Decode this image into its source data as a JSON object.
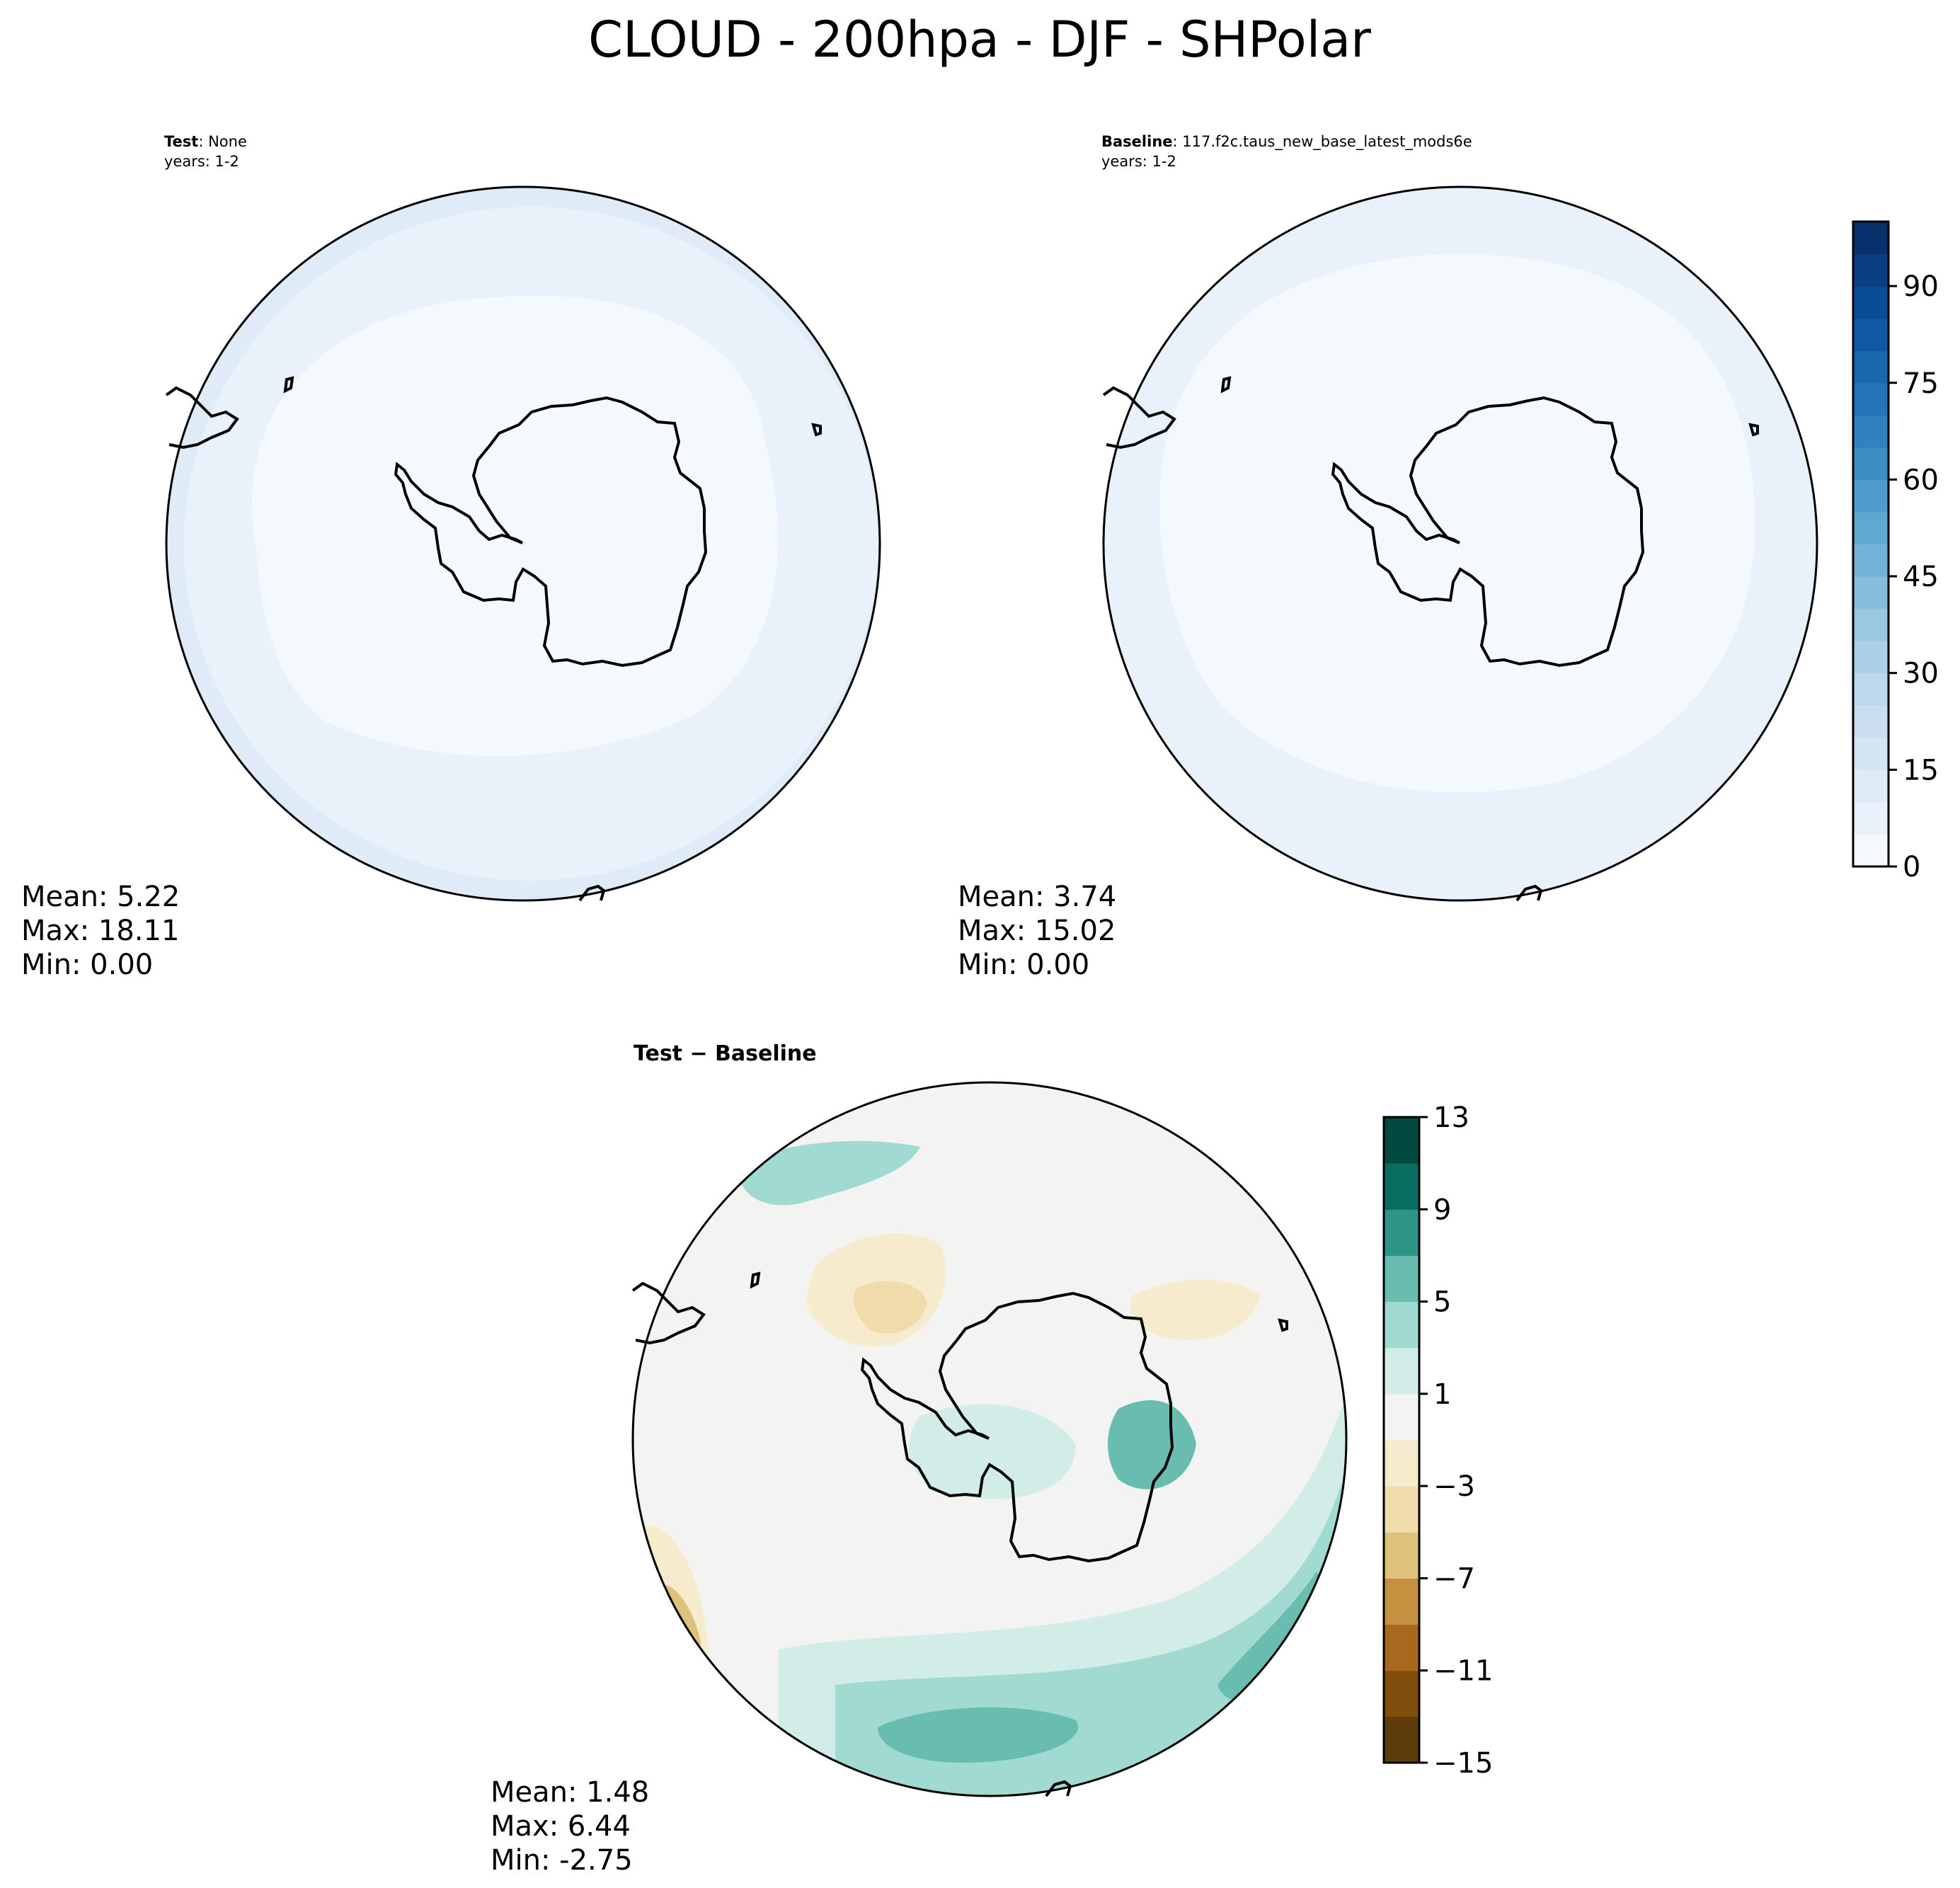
{
  "figure": {
    "title": "CLOUD - 200hpa - DJF - SHPolar"
  },
  "chart_data": [
    {
      "type": "heatmap",
      "projection": "south-polar-stereographic",
      "panel": "test",
      "header_label": "Test",
      "header_value": ": None",
      "years": "years: 1-2",
      "stats": {
        "mean": "5.22",
        "max": "18.11",
        "min": "0.00"
      },
      "stat_lines": [
        "Mean:  5.22",
        "Max: 18.11",
        "Min:  0.00"
      ],
      "colormap": "Blues",
      "shared_colorbar": "absolute",
      "field_levels": [
        {
          "ring": "outer",
          "value_range": [
            5,
            15
          ]
        },
        {
          "ring": "middle",
          "value_range": [
            5,
            10
          ]
        },
        {
          "ring": "inner",
          "value_range": [
            0,
            5
          ]
        }
      ]
    },
    {
      "type": "heatmap",
      "projection": "south-polar-stereographic",
      "panel": "baseline",
      "header_label": "Baseline",
      "header_value": ": 117.f2c.taus_new_base_latest_mods6e",
      "years": "years: 1-2",
      "stats": {
        "mean": "3.74",
        "max": "15.02",
        "min": "0.00"
      },
      "stat_lines": [
        "Mean:  3.74",
        "Max: 15.02",
        "Min:  0.00"
      ],
      "colormap": "Blues",
      "shared_colorbar": "absolute",
      "field_levels": [
        {
          "ring": "outer",
          "value_range": [
            5,
            10
          ]
        },
        {
          "ring": "inner",
          "value_range": [
            0,
            5
          ]
        }
      ]
    },
    {
      "type": "heatmap",
      "projection": "south-polar-stereographic",
      "panel": "difference",
      "header_label": "Test − Baseline",
      "stats": {
        "mean": "1.48",
        "max": "6.44",
        "min": "-2.75"
      },
      "stat_lines": [
        "Mean:  1.48",
        "Max:  6.44",
        "Min: -2.75"
      ],
      "colormap": "BrBG",
      "shared_colorbar": "difference"
    }
  ],
  "colorbars": {
    "absolute": {
      "min": 0,
      "max": 100,
      "step": 5,
      "ticks": [
        {
          "value": 0,
          "label": "0"
        },
        {
          "value": 15,
          "label": "15"
        },
        {
          "value": 30,
          "label": "30"
        },
        {
          "value": 45,
          "label": "45"
        },
        {
          "value": 60,
          "label": "60"
        },
        {
          "value": 75,
          "label": "75"
        },
        {
          "value": 90,
          "label": "90"
        }
      ],
      "colors": [
        "#f4f9fe",
        "#e9f2fb",
        "#dfebf7",
        "#d5e5f4",
        "#cbdef1",
        "#bdd7ec",
        "#acd0e6",
        "#9ac8e0",
        "#87bddc",
        "#73b2d8",
        "#60a7d2",
        "#4f9bcb",
        "#3e8ec4",
        "#3082be",
        "#2474b7",
        "#1967ad",
        "#0e59a2",
        "#084d96",
        "#083f80",
        "#08306b"
      ]
    },
    "difference": {
      "boundaries": [
        -15,
        -13,
        -11,
        -9,
        -7,
        -5,
        -3,
        -1,
        1,
        3,
        5,
        7,
        9,
        11,
        13
      ],
      "ticks": [
        {
          "value": -15,
          "label": "−15"
        },
        {
          "value": -11,
          "label": "−11"
        },
        {
          "value": -7,
          "label": "−7"
        },
        {
          "value": -3,
          "label": "−3"
        },
        {
          "value": 1,
          "label": "1"
        },
        {
          "value": 5,
          "label": "5"
        },
        {
          "value": 9,
          "label": "9"
        },
        {
          "value": 13,
          "label": "13"
        }
      ],
      "colors": [
        "#5e3c0b",
        "#804f0e",
        "#a8681e",
        "#c5903f",
        "#dec27b",
        "#efdcaa",
        "#f6ebcd",
        "#f3f4f2",
        "#d2ede8",
        "#a0dad0",
        "#68bcb0",
        "#2d9586",
        "#0a6d61",
        "#00493f"
      ]
    }
  }
}
